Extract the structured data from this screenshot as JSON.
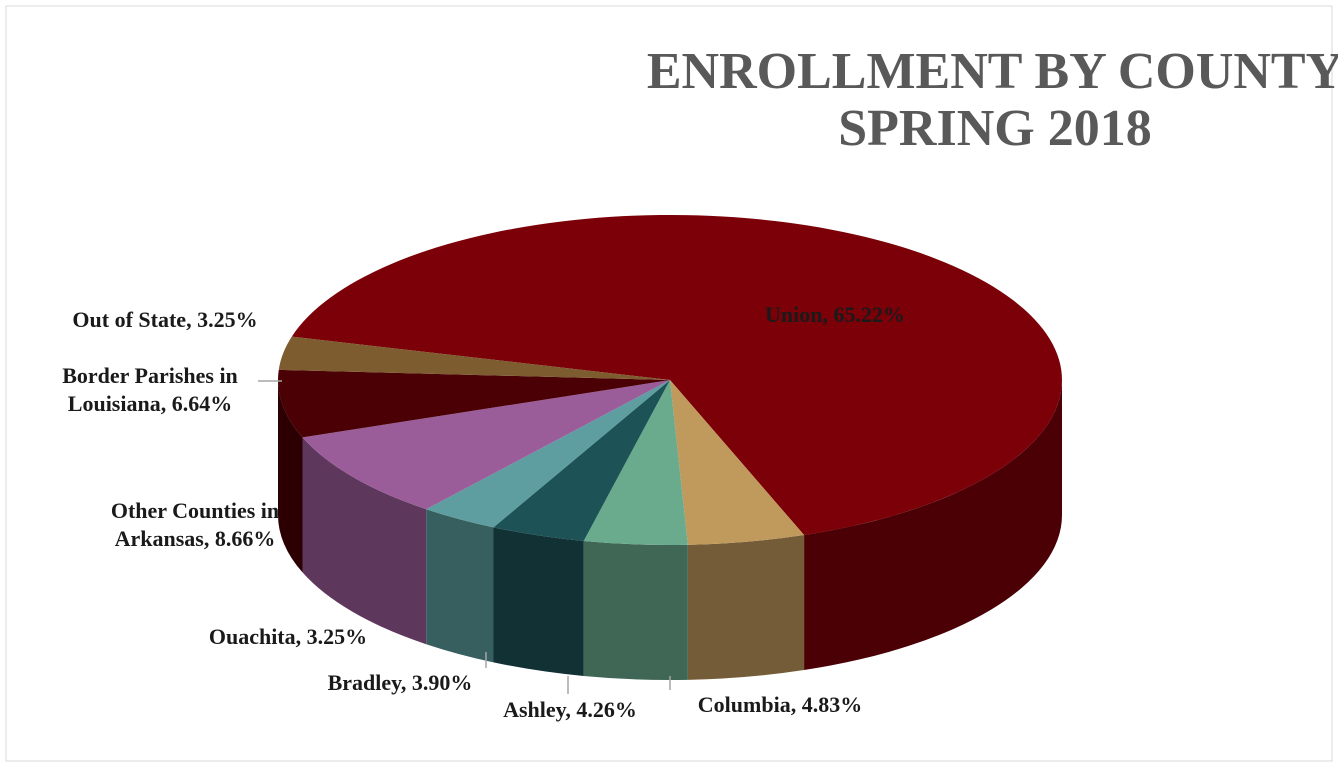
{
  "chart_data": {
    "type": "pie3d",
    "title": "ENROLLMENT BY COUNTY",
    "subtitle": "SPRING 2018",
    "values": [
      65.22,
      4.83,
      4.26,
      3.9,
      3.25,
      8.66,
      6.64,
      3.25
    ],
    "value_labels": [
      "Union, 65.22%",
      "Columbia, 4.83%",
      "Ashley, 4.26%",
      "Bradley, 3.90%",
      "Ouachita, 3.25%",
      "Other Counties in Arkansas, 8.66%",
      "Border Parishes in Louisiana, 6.64%",
      "Out of State, 3.25%"
    ],
    "colors": [
      "#7b0008",
      "#c09a5c",
      "#6aab8e",
      "#1d5257",
      "#5e9ea0",
      "#9b5c9a",
      "#4a0005",
      "#7d5c30"
    ]
  }
}
